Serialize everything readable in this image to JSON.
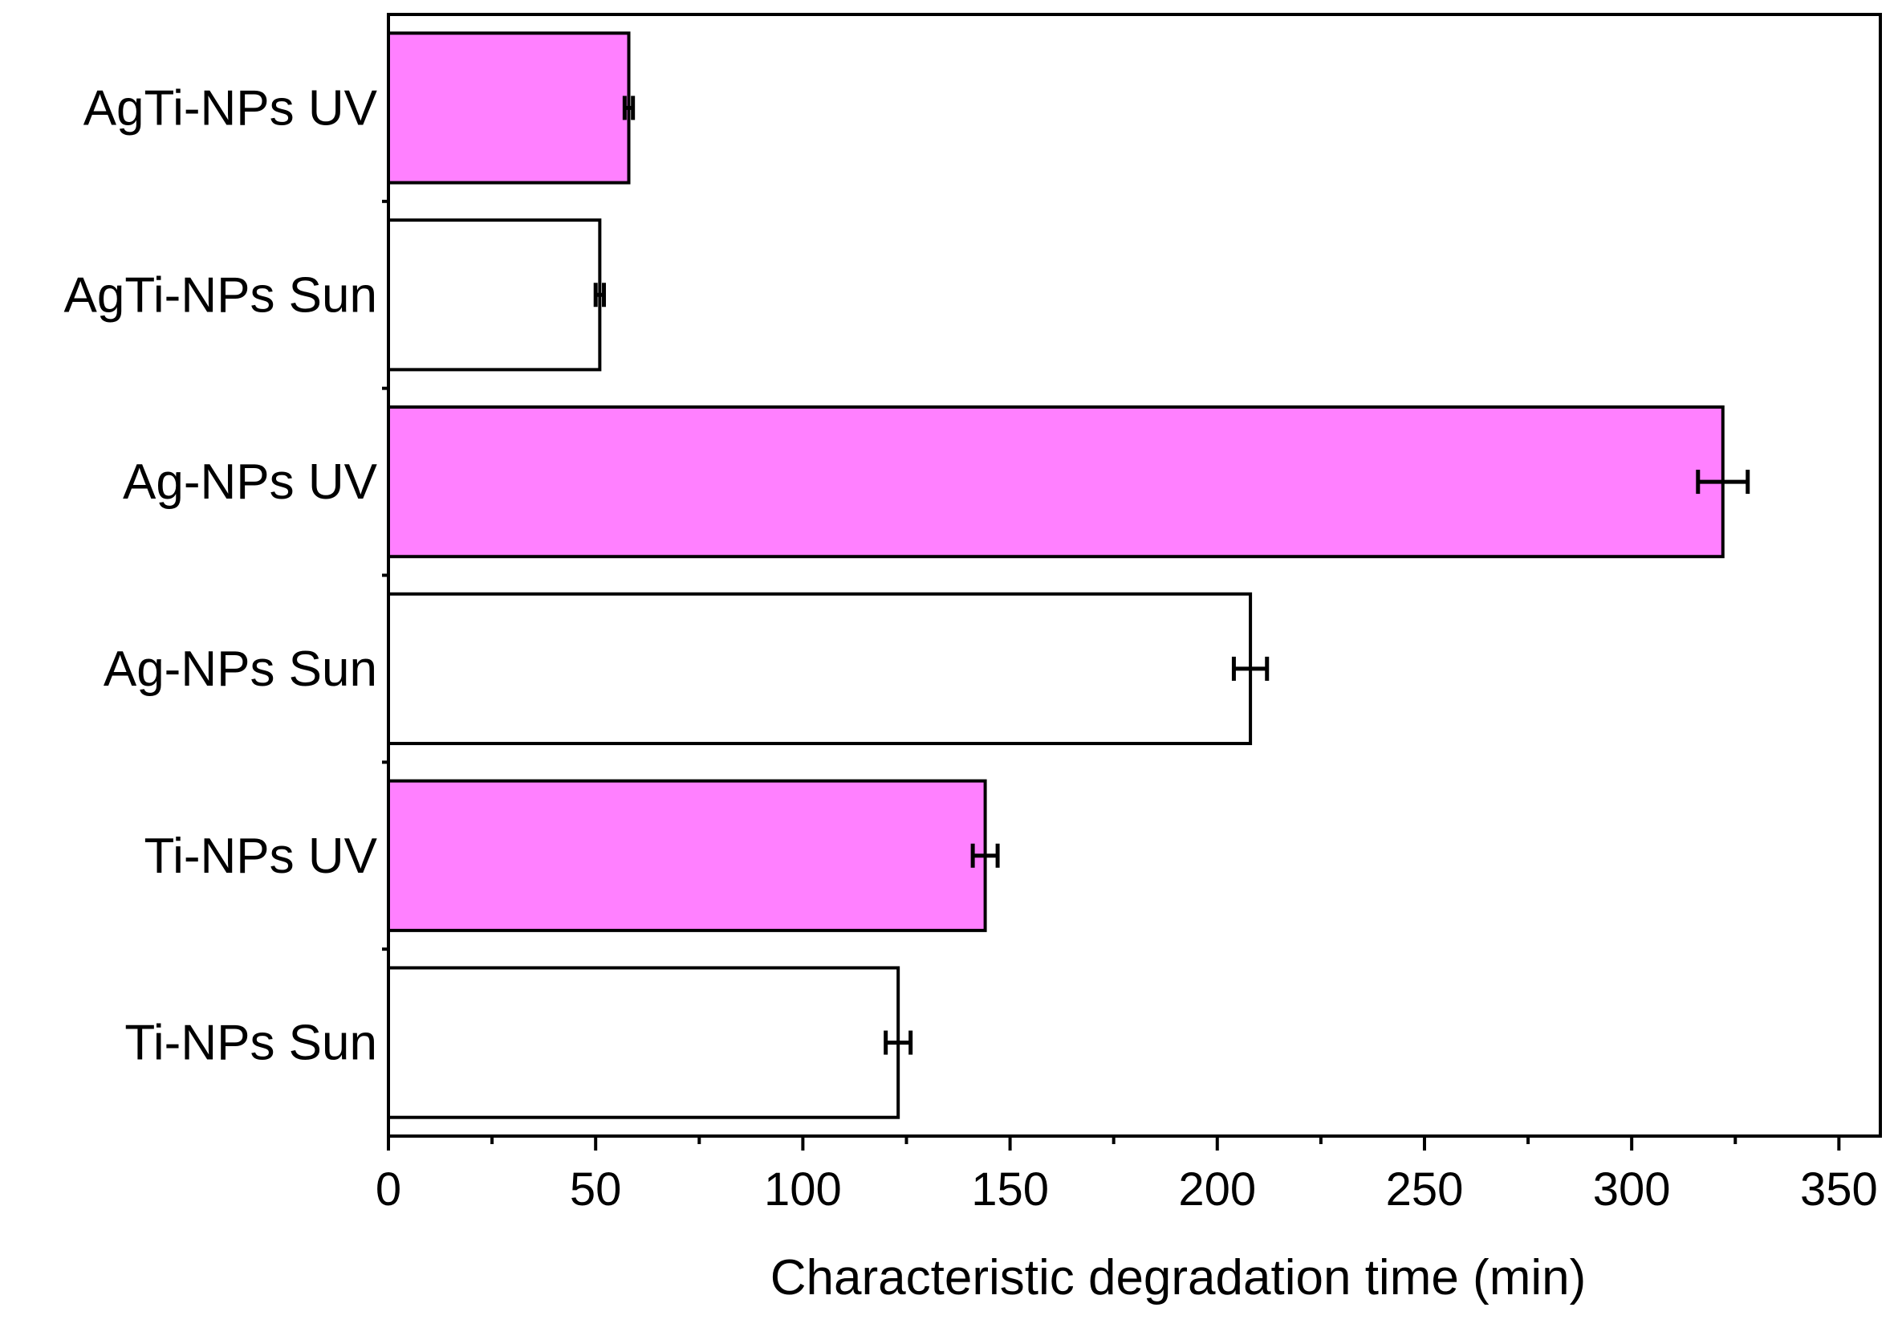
{
  "chart_data": {
    "type": "bar",
    "orientation": "horizontal",
    "title": "",
    "xlabel": "Characteristic degradation time (min)",
    "ylabel": "",
    "xlim": [
      0,
      360
    ],
    "x_ticks": [
      0,
      50,
      100,
      150,
      200,
      250,
      300,
      350
    ],
    "x_minor_tick_step": 25,
    "grid": false,
    "legend": "none",
    "categories": [
      "AgTi-NPs UV",
      "AgTi-NPs Sun",
      "Ag-NPs UV",
      "Ag-NPs Sun",
      "Ti-NPs UV",
      "Ti-NPs Sun"
    ],
    "values": [
      58,
      51,
      322,
      208,
      144,
      123
    ],
    "errors": [
      1,
      1,
      6,
      4,
      3,
      3
    ],
    "colors": {
      "UV": "#ff80ff",
      "Sun": "#ffffff",
      "edge": "#000000"
    },
    "bar_fill_keys": [
      "UV",
      "Sun",
      "UV",
      "Sun",
      "UV",
      "Sun"
    ]
  }
}
